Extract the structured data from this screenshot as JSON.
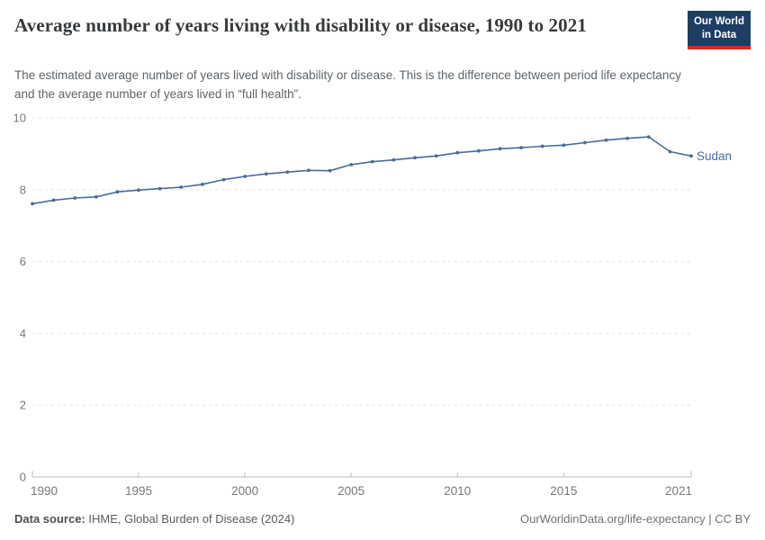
{
  "header": {
    "title": "Average number of years living with disability or disease, 1990 to 2021",
    "subtitle": "The estimated average number of years lived with disability or disease. This is the difference between period life expectancy and the average number of years lived in “full health”.",
    "logo": {
      "line1": "Our World",
      "line2": "in Data"
    }
  },
  "colors": {
    "line": "#4C6A9C",
    "logo_bg": "#1d3d63",
    "logo_bar": "#d42b21",
    "gridline": "#e1e1e1",
    "axis": "#bcbcbc",
    "tick_text": "#787878",
    "title_text": "#373a3d"
  },
  "chart_data": {
    "type": "line",
    "title": "Average number of years living with disability or disease, 1990 to 2021",
    "xlabel": "",
    "ylabel": "",
    "x": [
      1990,
      1991,
      1992,
      1993,
      1994,
      1995,
      1996,
      1997,
      1998,
      1999,
      2000,
      2001,
      2002,
      2003,
      2004,
      2005,
      2006,
      2007,
      2008,
      2009,
      2010,
      2011,
      2012,
      2013,
      2014,
      2015,
      2016,
      2017,
      2018,
      2019,
      2020,
      2021
    ],
    "series": [
      {
        "name": "Sudan",
        "values": [
          7.61,
          7.71,
          7.77,
          7.8,
          7.94,
          7.99,
          8.03,
          8.07,
          8.15,
          8.28,
          8.37,
          8.44,
          8.49,
          8.54,
          8.53,
          8.7,
          8.78,
          8.83,
          8.89,
          8.94,
          9.03,
          9.08,
          9.14,
          9.17,
          9.21,
          9.24,
          9.31,
          9.38,
          9.43,
          9.47,
          9.06,
          8.94
        ]
      }
    ],
    "entity_label": "Sudan",
    "xlim": [
      1990,
      2021
    ],
    "ylim": [
      0,
      10
    ],
    "xticks": [
      1990,
      1995,
      2000,
      2005,
      2010,
      2015,
      2021
    ],
    "yticks": [
      0,
      2,
      4,
      6,
      8,
      10
    ],
    "grid": "horizontal-dashed",
    "legend_position": "end-of-line"
  },
  "footer": {
    "source_label": "Data source:",
    "source_text": " IHME, Global Burden of Disease (2024)",
    "credit": "OurWorldinData.org/life-expectancy | CC BY"
  }
}
